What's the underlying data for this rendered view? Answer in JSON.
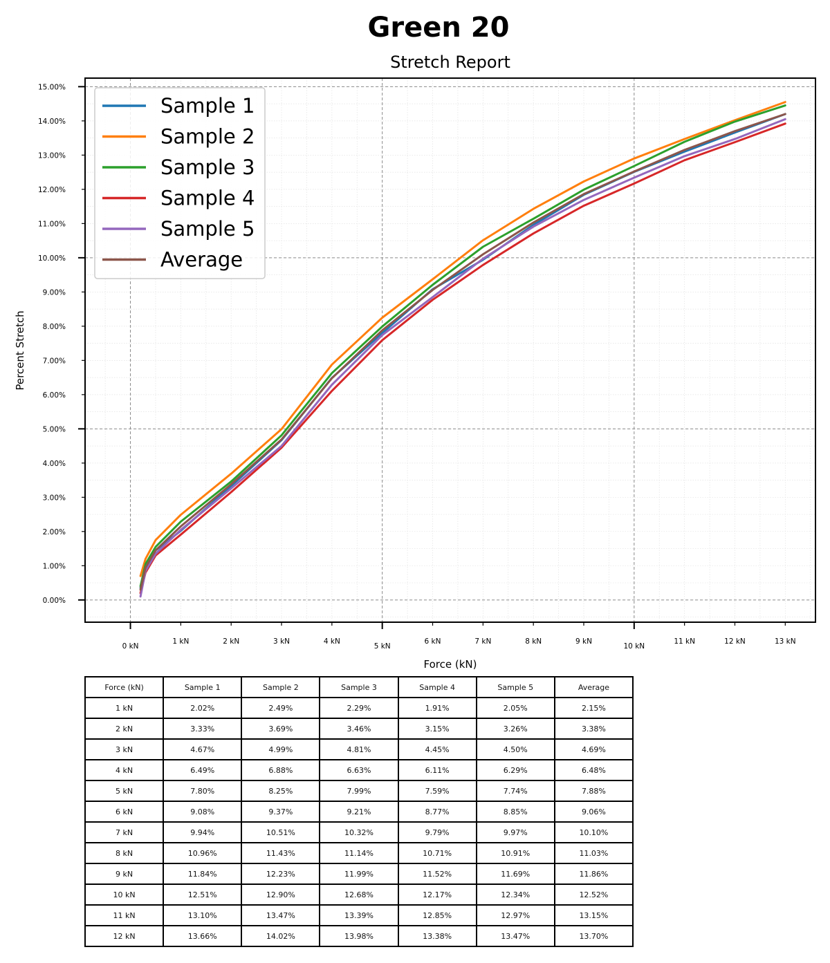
{
  "chart_data": {
    "type": "line",
    "suptitle": "Green 20",
    "title": "Stretch Report",
    "xlabel": "Force (kN)",
    "ylabel": "Percent Stretch",
    "xlim": [
      -0.9,
      13.6
    ],
    "ylim": [
      -0.65,
      15.25
    ],
    "x_ticks": [
      {
        "value": 0,
        "label": "0 kN",
        "major": true
      },
      {
        "value": 1,
        "label": "1 kN",
        "major": false
      },
      {
        "value": 2,
        "label": "2 kN",
        "major": false
      },
      {
        "value": 3,
        "label": "3 kN",
        "major": false
      },
      {
        "value": 4,
        "label": "4 kN",
        "major": false
      },
      {
        "value": 5,
        "label": "5 kN",
        "major": true
      },
      {
        "value": 6,
        "label": "6 kN",
        "major": false
      },
      {
        "value": 7,
        "label": "7 kN",
        "major": false
      },
      {
        "value": 8,
        "label": "8 kN",
        "major": false
      },
      {
        "value": 9,
        "label": "9 kN",
        "major": false
      },
      {
        "value": 10,
        "label": "10 kN",
        "major": true
      },
      {
        "value": 11,
        "label": "11 kN",
        "major": false
      },
      {
        "value": 12,
        "label": "12 kN",
        "major": false
      },
      {
        "value": 13,
        "label": "13 kN",
        "major": false
      }
    ],
    "y_ticks": [
      {
        "value": 0,
        "label": "0.00%",
        "major": true
      },
      {
        "value": 1,
        "label": "1.00%",
        "major": false
      },
      {
        "value": 2,
        "label": "2.00%",
        "major": false
      },
      {
        "value": 3,
        "label": "3.00%",
        "major": false
      },
      {
        "value": 4,
        "label": "4.00%",
        "major": false
      },
      {
        "value": 5,
        "label": "5.00%",
        "major": true
      },
      {
        "value": 6,
        "label": "6.00%",
        "major": false
      },
      {
        "value": 7,
        "label": "7.00%",
        "major": false
      },
      {
        "value": 8,
        "label": "8.00%",
        "major": false
      },
      {
        "value": 9,
        "label": "9.00%",
        "major": false
      },
      {
        "value": 10,
        "label": "10.00%",
        "major": true
      },
      {
        "value": 11,
        "label": "11.00%",
        "major": false
      },
      {
        "value": 12,
        "label": "12.00%",
        "major": false
      },
      {
        "value": 13,
        "label": "13.00%",
        "major": false
      },
      {
        "value": 14,
        "label": "14.00%",
        "major": false
      },
      {
        "value": 15,
        "label": "15.00%",
        "major": true
      }
    ],
    "grid": true,
    "legend_position": "top-left",
    "x": [
      0.2,
      0.3,
      0.5,
      1,
      2,
      3,
      4,
      5,
      6,
      7,
      8,
      9,
      10,
      11,
      12,
      13
    ],
    "series": [
      {
        "name": "Sample 1",
        "color": "#1f77b4",
        "values": [
          0.35,
          0.95,
          1.45,
          2.02,
          3.33,
          4.67,
          6.49,
          7.8,
          9.08,
          9.94,
          10.96,
          11.84,
          12.51,
          13.1,
          13.66,
          14.2
        ]
      },
      {
        "name": "Sample 2",
        "color": "#ff7f0e",
        "values": [
          0.7,
          1.2,
          1.75,
          2.49,
          3.69,
          4.99,
          6.88,
          8.25,
          9.37,
          10.51,
          11.43,
          12.23,
          12.9,
          13.47,
          14.02,
          14.55
        ]
      },
      {
        "name": "Sample 3",
        "color": "#2ca02c",
        "values": [
          0.4,
          1.05,
          1.55,
          2.29,
          3.46,
          4.81,
          6.63,
          7.99,
          9.21,
          10.32,
          11.14,
          11.99,
          12.68,
          13.39,
          13.98,
          14.45
        ]
      },
      {
        "name": "Sample 4",
        "color": "#d62728",
        "values": [
          0.2,
          0.8,
          1.3,
          1.91,
          3.15,
          4.45,
          6.11,
          7.59,
          8.77,
          9.79,
          10.71,
          11.52,
          12.17,
          12.85,
          13.38,
          13.92
        ]
      },
      {
        "name": "Sample 5",
        "color": "#9467bd",
        "values": [
          0.1,
          0.85,
          1.35,
          2.05,
          3.26,
          4.5,
          6.29,
          7.74,
          8.85,
          9.97,
          10.91,
          11.69,
          12.34,
          12.97,
          13.47,
          14.05
        ]
      },
      {
        "name": "Average",
        "color": "#8c564b",
        "values": [
          0.3,
          0.95,
          1.45,
          2.15,
          3.38,
          4.69,
          6.48,
          7.88,
          9.06,
          10.1,
          11.03,
          11.86,
          12.52,
          13.15,
          13.7,
          14.2
        ]
      }
    ]
  },
  "table": {
    "headers": [
      "Force (kN)",
      "Sample 1",
      "Sample 2",
      "Sample 3",
      "Sample 4",
      "Sample 5",
      "Average"
    ],
    "rows": [
      [
        "1 kN",
        "2.02%",
        "2.49%",
        "2.29%",
        "1.91%",
        "2.05%",
        "2.15%"
      ],
      [
        "2 kN",
        "3.33%",
        "3.69%",
        "3.46%",
        "3.15%",
        "3.26%",
        "3.38%"
      ],
      [
        "3 kN",
        "4.67%",
        "4.99%",
        "4.81%",
        "4.45%",
        "4.50%",
        "4.69%"
      ],
      [
        "4 kN",
        "6.49%",
        "6.88%",
        "6.63%",
        "6.11%",
        "6.29%",
        "6.48%"
      ],
      [
        "5 kN",
        "7.80%",
        "8.25%",
        "7.99%",
        "7.59%",
        "7.74%",
        "7.88%"
      ],
      [
        "6 kN",
        "9.08%",
        "9.37%",
        "9.21%",
        "8.77%",
        "8.85%",
        "9.06%"
      ],
      [
        "7 kN",
        "9.94%",
        "10.51%",
        "10.32%",
        "9.79%",
        "9.97%",
        "10.10%"
      ],
      [
        "8 kN",
        "10.96%",
        "11.43%",
        "11.14%",
        "10.71%",
        "10.91%",
        "11.03%"
      ],
      [
        "9 kN",
        "11.84%",
        "12.23%",
        "11.99%",
        "11.52%",
        "11.69%",
        "11.86%"
      ],
      [
        "10 kN",
        "12.51%",
        "12.90%",
        "12.68%",
        "12.17%",
        "12.34%",
        "12.52%"
      ],
      [
        "11 kN",
        "13.10%",
        "13.47%",
        "13.39%",
        "12.85%",
        "12.97%",
        "13.15%"
      ],
      [
        "12 kN",
        "13.66%",
        "14.02%",
        "13.98%",
        "13.38%",
        "13.47%",
        "13.70%"
      ]
    ]
  }
}
